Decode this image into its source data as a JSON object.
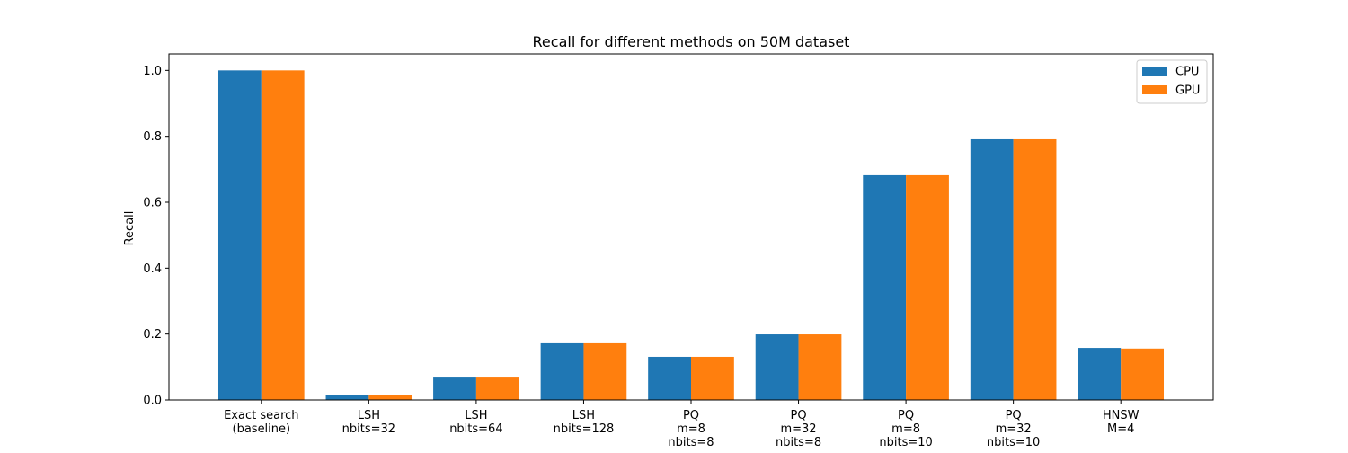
{
  "chart_data": {
    "type": "bar",
    "title": "Recall for different methods on 50M dataset",
    "xlabel": "",
    "ylabel": "Recall",
    "ylim": [
      0,
      1.05
    ],
    "yticks": [
      0.0,
      0.2,
      0.4,
      0.6,
      0.8,
      1.0
    ],
    "ytick_labels": [
      "0.0",
      "0.2",
      "0.4",
      "0.6",
      "0.8",
      "1.0"
    ],
    "grid": false,
    "legend_position": "top-right",
    "categories": [
      [
        "Exact search",
        "(baseline)"
      ],
      [
        "LSH",
        "nbits=32"
      ],
      [
        "LSH",
        "nbits=64"
      ],
      [
        "LSH",
        "nbits=128"
      ],
      [
        "PQ",
        "m=8",
        "nbits=8"
      ],
      [
        "PQ",
        "m=32",
        "nbits=8"
      ],
      [
        "PQ",
        "m=8",
        "nbits=10"
      ],
      [
        "PQ",
        "m=32",
        "nbits=10"
      ],
      [
        "HNSW",
        "M=4"
      ]
    ],
    "series": [
      {
        "name": "CPU",
        "color": "#1f77b4",
        "values": [
          1.0,
          0.016,
          0.068,
          0.172,
          0.131,
          0.199,
          0.682,
          0.791,
          0.158
        ]
      },
      {
        "name": "GPU",
        "color": "#ff7f0e",
        "values": [
          1.0,
          0.016,
          0.068,
          0.172,
          0.131,
          0.199,
          0.682,
          0.791,
          0.156
        ]
      }
    ]
  }
}
